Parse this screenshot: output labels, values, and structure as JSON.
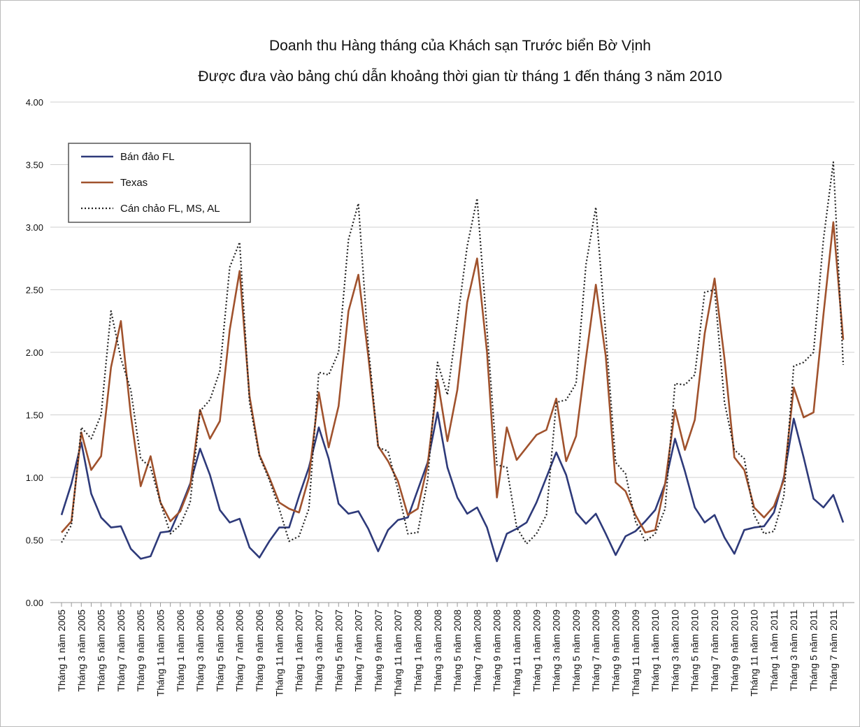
{
  "chart_data": {
    "type": "line",
    "title": "Doanh thu Hàng tháng của Khách sạn Trước biển Bờ Vịnh",
    "subtitle": "Được đưa vào bảng chú dẫn khoảng thời gian từ tháng 1 đến tháng 3 năm 2010",
    "categories": [
      "Tháng 1 năm 2005",
      null,
      "Tháng 3 năm 2005",
      null,
      "Tháng 5 năm 2005",
      null,
      "Tháng 7 năm 2005",
      null,
      "Tháng 9 năm 2005",
      null,
      "Tháng 11 năm 2005",
      null,
      "Tháng 1 năm 2006",
      null,
      "Tháng 3 năm 2006",
      null,
      "Tháng 5 năm 2006",
      null,
      "Tháng 7 năm 2006",
      null,
      "Tháng 9 năm 2006",
      null,
      "Tháng 11 năm 2006",
      null,
      "Tháng 1 năm 2007",
      null,
      "Tháng 3 năm 2007",
      null,
      "Tháng 5 năm 2007",
      null,
      "Tháng 7 năm 2007",
      null,
      "Tháng 9 năm 2007",
      null,
      "Tháng 11 năm 2007",
      null,
      "Tháng 1 năm 2008",
      null,
      "Tháng 3 năm 2008",
      null,
      "Tháng 5 năm 2008",
      null,
      "Tháng 7 năm 2008",
      null,
      "Tháng 9 năm 2008",
      null,
      "Tháng 11 năm 2008",
      null,
      "Tháng 1 năm 2009",
      null,
      "Tháng 3 năm 2009",
      null,
      "Tháng 5 năm 2009",
      null,
      "Tháng 7 năm 2009",
      null,
      "Tháng 9 năm 2009",
      null,
      "Tháng 11 năm 2009",
      null,
      "Tháng 1 năm 2010",
      null,
      "Tháng 3 năm 2010",
      null,
      "Tháng 5 năm 2010",
      null,
      "Tháng 7 năm 2010",
      null,
      "Tháng 9 năm 2010",
      null,
      "Tháng 11 năm 2010",
      null,
      "Tháng 1 năm 2011",
      null,
      "Tháng 3 năm 2011",
      null,
      "Tháng 5 năm 2011",
      null,
      "Tháng 7 năm 2011",
      null
    ],
    "series": [
      {
        "name": "Bán đảo FL",
        "color": "#2e3a7a",
        "dash": false,
        "values": [
          0.7,
          0.95,
          1.28,
          0.87,
          0.68,
          0.6,
          0.61,
          0.43,
          0.35,
          0.37,
          0.56,
          0.57,
          0.75,
          0.95,
          1.23,
          1.02,
          0.74,
          0.64,
          0.67,
          0.44,
          0.36,
          0.49,
          0.6,
          0.6,
          0.85,
          1.08,
          1.4,
          1.15,
          0.79,
          0.71,
          0.73,
          0.59,
          0.41,
          0.58,
          0.66,
          0.68,
          0.9,
          1.12,
          1.52,
          1.08,
          0.84,
          0.71,
          0.76,
          0.6,
          0.33,
          0.55,
          0.59,
          0.64,
          0.8,
          1.0,
          1.2,
          1.02,
          0.72,
          0.63,
          0.71,
          0.55,
          0.38,
          0.53,
          0.57,
          0.65,
          0.74,
          0.95,
          1.31,
          1.05,
          0.76,
          0.64,
          0.7,
          0.52,
          0.39,
          0.58,
          0.6,
          0.61,
          0.72,
          1.0,
          1.47,
          1.16,
          0.83,
          0.76,
          0.86,
          0.64
        ]
      },
      {
        "name": "Texas",
        "color": "#a0522d",
        "dash": false,
        "values": [
          0.56,
          0.65,
          1.36,
          1.06,
          1.17,
          1.88,
          2.25,
          1.5,
          0.93,
          1.17,
          0.8,
          0.65,
          0.73,
          0.93,
          1.54,
          1.31,
          1.45,
          2.18,
          2.65,
          1.65,
          1.18,
          1.0,
          0.8,
          0.75,
          0.72,
          1.0,
          1.68,
          1.24,
          1.57,
          2.33,
          2.62,
          1.97,
          1.25,
          1.13,
          0.97,
          0.7,
          0.75,
          1.1,
          1.78,
          1.29,
          1.7,
          2.4,
          2.75,
          2.0,
          0.84,
          1.4,
          1.14,
          1.24,
          1.34,
          1.38,
          1.63,
          1.13,
          1.33,
          1.95,
          2.54,
          1.97,
          0.96,
          0.89,
          0.7,
          0.56,
          0.58,
          0.95,
          1.54,
          1.22,
          1.46,
          2.15,
          2.59,
          1.95,
          1.16,
          1.06,
          0.76,
          0.68,
          0.77,
          0.98,
          1.72,
          1.48,
          1.52,
          2.3,
          3.04,
          2.1
        ]
      },
      {
        "name": "Cán chảo FL, MS, AL",
        "color": "#222222",
        "dash": true,
        "values": [
          0.48,
          0.62,
          1.4,
          1.31,
          1.5,
          2.33,
          1.95,
          1.7,
          1.15,
          1.08,
          0.8,
          0.55,
          0.62,
          0.8,
          1.53,
          1.62,
          1.85,
          2.68,
          2.88,
          1.6,
          1.17,
          0.98,
          0.75,
          0.49,
          0.53,
          0.75,
          1.84,
          1.82,
          2.0,
          2.9,
          3.19,
          2.05,
          1.24,
          1.21,
          0.9,
          0.55,
          0.56,
          0.98,
          1.92,
          1.66,
          2.25,
          2.85,
          3.23,
          2.18,
          1.1,
          1.08,
          0.6,
          0.47,
          0.55,
          0.7,
          1.6,
          1.62,
          1.75,
          2.7,
          3.16,
          2.15,
          1.12,
          1.03,
          0.65,
          0.49,
          0.55,
          0.75,
          1.75,
          1.74,
          1.82,
          2.48,
          2.5,
          1.6,
          1.22,
          1.15,
          0.7,
          0.55,
          0.57,
          0.85,
          1.89,
          1.92,
          2.0,
          2.9,
          3.52,
          1.9
        ]
      }
    ],
    "ylim": [
      0,
      4
    ],
    "yticks": [
      {
        "value": 0,
        "label": "0.00"
      },
      {
        "value": 0.5,
        "label": "0.50"
      },
      {
        "value": 1,
        "label": "1.00"
      },
      {
        "value": 1.5,
        "label": "1.50"
      },
      {
        "value": 2,
        "label": "2.00"
      },
      {
        "value": 2.5,
        "label": "2.50"
      },
      {
        "value": 3,
        "label": "3.00"
      },
      {
        "value": 3.5,
        "label": "3.50"
      },
      {
        "value": 4,
        "label": "4.00"
      }
    ],
    "grid": true,
    "legend": "upper-left"
  }
}
